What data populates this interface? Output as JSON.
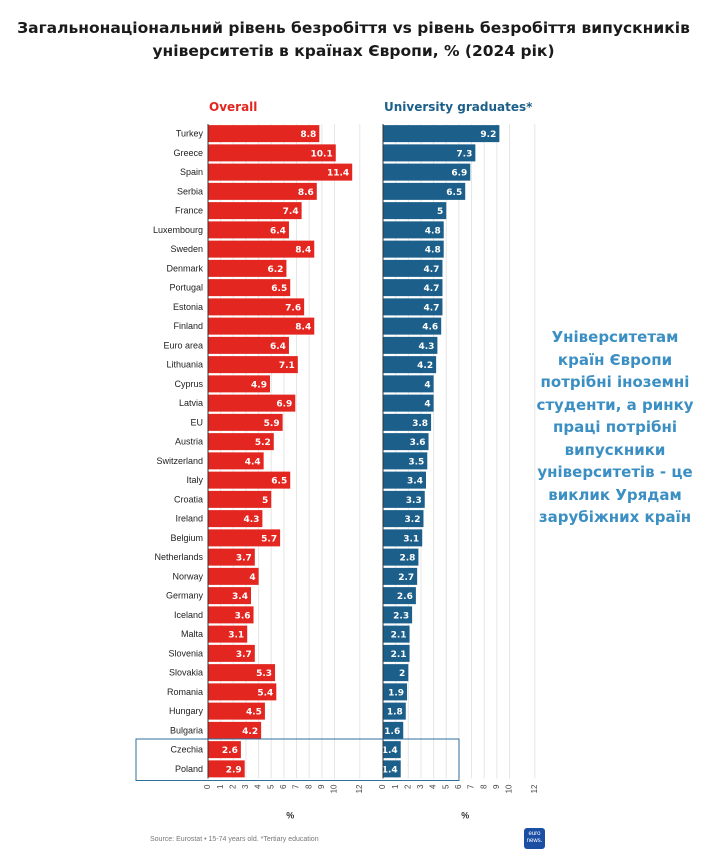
{
  "title_line1": "Загальнонаціональний рівень безробіття vs рівень безробіття випускників",
  "title_line2": "університетів в країнах Європи, % (2024 рік)",
  "side_text": "Університетам країн Європи потрібні іноземні студенти, а ринку праці потрібні випускники університетів - це виклик Урядам зарубіжних країн",
  "source": "Source: Eurostat • 15-74 years old. *Tertiary education",
  "logo_text": "euro news.",
  "colors": {
    "overall": "#e32620",
    "graduates": "#1b5f8a",
    "highlight_box": "#2f6f9e",
    "side_text": "#3b8fc3"
  },
  "chart_data": [
    {
      "type": "bar",
      "orientation": "horizontal",
      "title": "Overall",
      "xlabel": "%",
      "xlim": [
        0,
        12
      ],
      "xticks": [
        0,
        1,
        2,
        3,
        4,
        5,
        6,
        7,
        8,
        9,
        10,
        12
      ],
      "grid": true,
      "categories": [
        "Turkey",
        "Greece",
        "Spain",
        "Serbia",
        "France",
        "Luxembourg",
        "Sweden",
        "Denmark",
        "Portugal",
        "Estonia",
        "Finland",
        "Euro area",
        "Lithuania",
        "Cyprus",
        "Latvia",
        "EU",
        "Austria",
        "Switzerland",
        "Italy",
        "Croatia",
        "Ireland",
        "Belgium",
        "Netherlands",
        "Norway",
        "Germany",
        "Iceland",
        "Malta",
        "Slovenia",
        "Slovakia",
        "Romania",
        "Hungary",
        "Bulgaria",
        "Czechia",
        "Poland"
      ],
      "values": [
        8.8,
        10.1,
        11.4,
        8.6,
        7.4,
        6.4,
        8.4,
        6.2,
        6.5,
        7.6,
        8.4,
        6.4,
        7.1,
        4.9,
        6.9,
        5.9,
        5.2,
        4.4,
        6.5,
        5,
        4.3,
        5.7,
        3.7,
        4,
        3.4,
        3.6,
        3.1,
        3.7,
        5.3,
        5.4,
        4.5,
        4.2,
        2.6,
        2.9
      ],
      "value_labels": [
        "8.8",
        "10.1",
        "11.4",
        "8.6",
        "7.4",
        "6.4",
        "8.4",
        "6.2",
        "6.5",
        "7.6",
        "8.4",
        "6.4",
        "7.1",
        "4.9",
        "6.9",
        "5.9",
        "5.2",
        "4.4",
        "6.5",
        "5",
        "4.3",
        "5.7",
        "3.7",
        "4",
        "3.4",
        "3.6",
        "3.1",
        "3.7",
        "5.3",
        "5.4",
        "4.5",
        "4.2",
        "2.6",
        "2.9"
      ]
    },
    {
      "type": "bar",
      "orientation": "horizontal",
      "title": "University graduates*",
      "xlabel": "%",
      "xlim": [
        0,
        12
      ],
      "xticks": [
        0,
        1,
        2,
        3,
        4,
        5,
        6,
        7,
        8,
        9,
        10,
        12
      ],
      "grid": true,
      "categories": [
        "Turkey",
        "Greece",
        "Spain",
        "Serbia",
        "France",
        "Luxembourg",
        "Sweden",
        "Denmark",
        "Portugal",
        "Estonia",
        "Finland",
        "Euro area",
        "Lithuania",
        "Cyprus",
        "Latvia",
        "EU",
        "Austria",
        "Switzerland",
        "Italy",
        "Croatia",
        "Ireland",
        "Belgium",
        "Netherlands",
        "Norway",
        "Germany",
        "Iceland",
        "Malta",
        "Slovenia",
        "Slovakia",
        "Romania",
        "Hungary",
        "Bulgaria",
        "Czechia",
        "Poland"
      ],
      "values": [
        9.2,
        7.3,
        6.9,
        6.5,
        5,
        4.8,
        4.8,
        4.7,
        4.7,
        4.7,
        4.6,
        4.3,
        4.2,
        4,
        4,
        3.8,
        3.6,
        3.5,
        3.4,
        3.3,
        3.2,
        3.1,
        2.8,
        2.7,
        2.6,
        2.3,
        2.1,
        2.1,
        2,
        1.9,
        1.8,
        1.6,
        1.4,
        1.4
      ],
      "value_labels": [
        "9.2",
        "7.3",
        "6.9",
        "6.5",
        "5",
        "4.8",
        "4.8",
        "4.7",
        "4.7",
        "4.7",
        "4.6",
        "4.3",
        "4.2",
        "4",
        "4",
        "3.8",
        "3.6",
        "3.5",
        "3.4",
        "3.3",
        "3.2",
        "3.1",
        "2.8",
        "2.7",
        "2.6",
        "2.3",
        "2.1",
        "2.1",
        "2",
        "1.9",
        "1.8",
        "1.6",
        "1.4",
        "1.4"
      ]
    }
  ]
}
